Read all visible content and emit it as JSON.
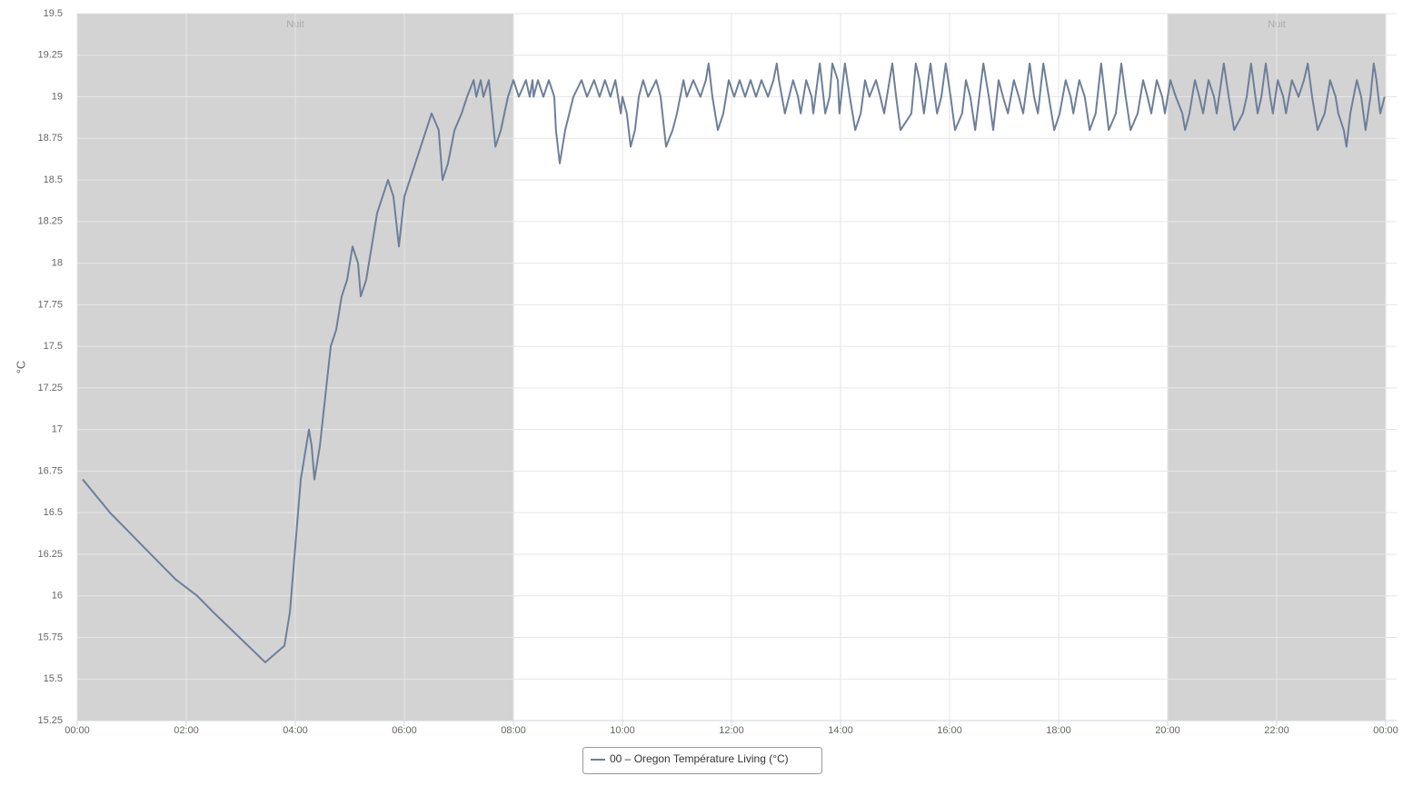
{
  "chart_data": {
    "type": "line",
    "y_label": "°C",
    "xlim": [
      0,
      24
    ],
    "ylim": [
      15.25,
      19.5
    ],
    "yticks": [
      15.25,
      15.5,
      15.75,
      16,
      16.25,
      16.5,
      16.75,
      17,
      17.25,
      17.5,
      17.75,
      18,
      18.25,
      18.5,
      18.75,
      19,
      19.25,
      19.5
    ],
    "xticks": [
      {
        "value": 0,
        "label": "00:00"
      },
      {
        "value": 2,
        "label": "02:00"
      },
      {
        "value": 4,
        "label": "04:00"
      },
      {
        "value": 6,
        "label": "06:00"
      },
      {
        "value": 8,
        "label": "08:00"
      },
      {
        "value": 10,
        "label": "10:00"
      },
      {
        "value": 12,
        "label": "12:00"
      },
      {
        "value": 14,
        "label": "14:00"
      },
      {
        "value": 16,
        "label": "16:00"
      },
      {
        "value": 18,
        "label": "18:00"
      },
      {
        "value": 20,
        "label": "20:00"
      },
      {
        "value": 22,
        "label": "22:00"
      },
      {
        "value": 24,
        "label": "00:00"
      }
    ],
    "grid": true,
    "plot_bands": [
      {
        "from": 0,
        "to": 8,
        "label": "Nuit",
        "color": "#d3d3d3"
      },
      {
        "from": 20,
        "to": 24,
        "label": "Nuit",
        "color": "#d3d3d3"
      }
    ],
    "x": [
      0.1,
      0.6,
      0.9,
      1.2,
      1.5,
      1.8,
      2.2,
      2.5,
      3.45,
      3.8,
      3.9,
      4.0,
      4.05,
      4.1,
      4.2,
      4.25,
      4.3,
      4.35,
      4.45,
      4.55,
      4.65,
      4.75,
      4.85,
      4.95,
      5.05,
      5.15,
      5.2,
      5.3,
      5.4,
      5.5,
      5.6,
      5.7,
      5.8,
      5.9,
      6.0,
      6.2,
      6.3,
      6.4,
      6.5,
      6.63,
      6.7,
      6.8,
      6.92,
      7.05,
      7.15,
      7.27,
      7.32,
      7.4,
      7.45,
      7.55,
      7.67,
      7.77,
      7.9,
      8.0,
      8.1,
      8.23,
      8.3,
      8.35,
      8.37,
      8.45,
      8.55,
      8.65,
      8.75,
      8.78,
      8.85,
      8.95,
      9.1,
      9.25,
      9.35,
      9.48,
      9.58,
      9.68,
      9.78,
      9.87,
      9.97,
      10.0,
      10.08,
      10.15,
      10.23,
      10.3,
      10.38,
      10.47,
      10.62,
      10.7,
      10.8,
      10.92,
      11.0,
      11.12,
      11.18,
      11.3,
      11.43,
      11.53,
      11.58,
      11.65,
      11.75,
      11.85,
      11.95,
      12.05,
      12.15,
      12.25,
      12.35,
      12.45,
      12.55,
      12.67,
      12.77,
      12.83,
      12.87,
      12.98,
      13.13,
      13.22,
      13.27,
      13.37,
      13.47,
      13.5,
      13.62,
      13.72,
      13.8,
      13.85,
      13.95,
      13.98,
      14.08,
      14.17,
      14.27,
      14.37,
      14.45,
      14.53,
      14.65,
      14.73,
      14.8,
      14.95,
      15.02,
      15.1,
      15.3,
      15.38,
      15.45,
      15.53,
      15.65,
      15.77,
      15.85,
      15.93,
      16.02,
      16.1,
      16.23,
      16.3,
      16.38,
      16.47,
      16.62,
      16.72,
      16.8,
      16.9,
      16.98,
      17.07,
      17.18,
      17.27,
      17.35,
      17.47,
      17.55,
      17.62,
      17.72,
      17.82,
      17.92,
      18.02,
      18.13,
      18.22,
      18.27,
      18.38,
      18.48,
      18.57,
      18.68,
      18.78,
      18.85,
      18.92,
      19.05,
      19.15,
      19.23,
      19.32,
      19.45,
      19.55,
      19.63,
      19.7,
      19.8,
      19.9,
      19.95,
      20.05,
      20.15,
      20.27,
      20.32,
      20.4,
      20.5,
      20.58,
      20.65,
      20.75,
      20.85,
      20.9,
      21.03,
      21.12,
      21.22,
      21.38,
      21.45,
      21.53,
      21.65,
      21.72,
      21.8,
      21.88,
      21.93,
      22.02,
      22.12,
      22.17,
      22.28,
      22.4,
      22.5,
      22.57,
      22.65,
      22.75,
      22.88,
      22.98,
      23.08,
      23.13,
      23.23,
      23.28,
      23.35,
      23.47,
      23.55,
      23.63,
      23.72,
      23.78,
      23.83,
      23.9,
      23.98
    ],
    "series": [
      {
        "name": "00 – Oregon Température Living (°C)",
        "color": "#6d7f99",
        "values": [
          16.7,
          16.5,
          16.4,
          16.3,
          16.2,
          16.1,
          16.0,
          15.9,
          15.6,
          15.7,
          15.9,
          16.3,
          16.5,
          16.7,
          16.9,
          17.0,
          16.9,
          16.7,
          16.9,
          17.2,
          17.5,
          17.6,
          17.8,
          17.9,
          18.1,
          18.0,
          17.8,
          17.9,
          18.1,
          18.3,
          18.4,
          18.5,
          18.4,
          18.1,
          18.4,
          18.6,
          18.7,
          18.8,
          18.9,
          18.8,
          18.5,
          18.6,
          18.8,
          18.9,
          19.0,
          19.1,
          19.0,
          19.1,
          19.0,
          19.1,
          18.7,
          18.8,
          19.0,
          19.1,
          19.0,
          19.1,
          19.0,
          19.1,
          19.0,
          19.1,
          19.0,
          19.1,
          19.0,
          18.8,
          18.6,
          18.8,
          19.0,
          19.1,
          19.0,
          19.1,
          19.0,
          19.1,
          19.0,
          19.1,
          18.9,
          19.0,
          18.9,
          18.7,
          18.8,
          19.0,
          19.1,
          19.0,
          19.1,
          19.0,
          18.7,
          18.8,
          18.9,
          19.1,
          19.0,
          19.1,
          19.0,
          19.1,
          19.2,
          19.0,
          18.8,
          18.9,
          19.1,
          19.0,
          19.1,
          19.0,
          19.1,
          19.0,
          19.1,
          19.0,
          19.1,
          19.2,
          19.1,
          18.9,
          19.1,
          19.0,
          18.9,
          19.1,
          19.0,
          18.9,
          19.2,
          18.9,
          19.0,
          19.2,
          19.1,
          18.9,
          19.2,
          19.0,
          18.8,
          18.9,
          19.1,
          19.0,
          19.1,
          19.0,
          18.9,
          19.2,
          19.0,
          18.8,
          18.9,
          19.2,
          19.1,
          18.9,
          19.2,
          18.9,
          19.0,
          19.2,
          19.0,
          18.8,
          18.9,
          19.1,
          19.0,
          18.8,
          19.2,
          19.0,
          18.8,
          19.1,
          19.0,
          18.9,
          19.1,
          19.0,
          18.9,
          19.2,
          19.0,
          18.9,
          19.2,
          19.0,
          18.8,
          18.9,
          19.1,
          19.0,
          18.9,
          19.1,
          19.0,
          18.8,
          18.9,
          19.2,
          19.0,
          18.8,
          18.9,
          19.2,
          19.0,
          18.8,
          18.9,
          19.1,
          19.0,
          18.9,
          19.1,
          19.0,
          18.9,
          19.1,
          19.0,
          18.9,
          18.8,
          18.9,
          19.1,
          19.0,
          18.9,
          19.1,
          19.0,
          18.9,
          19.2,
          19.0,
          18.8,
          18.9,
          19.0,
          19.2,
          18.9,
          19.0,
          19.2,
          19.0,
          18.9,
          19.1,
          19.0,
          18.9,
          19.1,
          19.0,
          19.1,
          19.2,
          19.0,
          18.8,
          18.9,
          19.1,
          19.0,
          18.9,
          18.8,
          18.7,
          18.9,
          19.1,
          19.0,
          18.8,
          19.0,
          19.2,
          19.1,
          18.9,
          19.0
        ]
      }
    ]
  }
}
